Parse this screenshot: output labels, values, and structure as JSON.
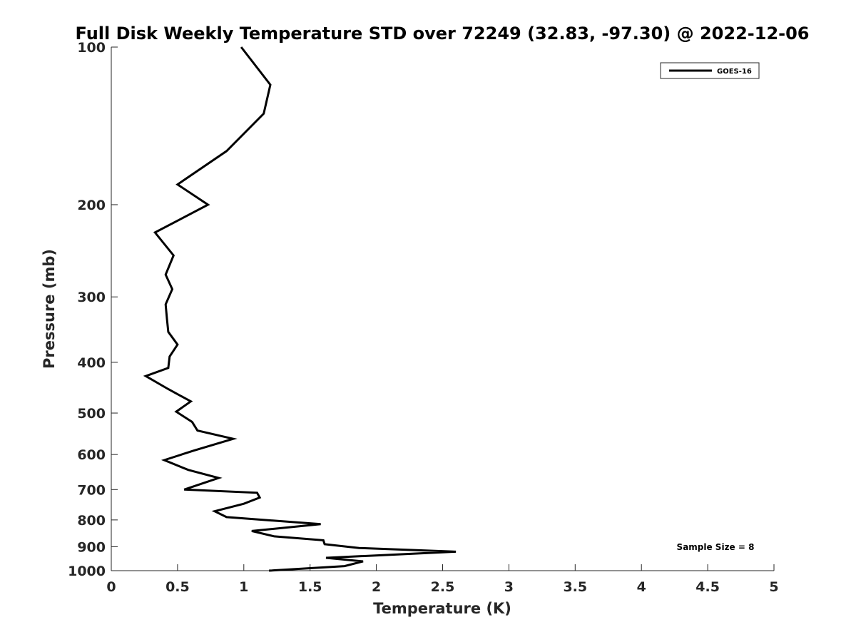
{
  "chart_data": {
    "type": "line",
    "title": "Full Disk Weekly Temperature STD over 72249 (32.83, -97.30) @ 2022-12-06",
    "xlabel": "Temperature (K)",
    "ylabel": "Pressure (mb)",
    "xlim": [
      0,
      5
    ],
    "ylim": [
      100,
      1000
    ],
    "y_scale": "log",
    "y_reversed": true,
    "x_ticks": [
      0,
      0.5,
      1,
      1.5,
      2,
      2.5,
      3,
      3.5,
      4,
      4.5,
      5
    ],
    "x_tick_labels": [
      "0",
      "0.5",
      "1",
      "1.5",
      "2",
      "2.5",
      "3",
      "3.5",
      "4",
      "4.5",
      "5"
    ],
    "y_ticks": [
      100,
      200,
      300,
      400,
      500,
      600,
      700,
      800,
      900,
      1000
    ],
    "y_tick_labels": [
      "100",
      "200",
      "300",
      "400",
      "500",
      "600",
      "700",
      "800",
      "900",
      "1000"
    ],
    "grid": false,
    "legend_position": "top-right",
    "annotation": "Sample Size = 8",
    "series": [
      {
        "name": "GOES-16",
        "color": "#000000",
        "x": [
          0.98,
          1.2,
          1.15,
          0.87,
          0.5,
          0.73,
          0.33,
          0.47,
          0.41,
          0.46,
          0.41,
          0.42,
          0.43,
          0.5,
          0.44,
          0.43,
          0.26,
          0.43,
          0.6,
          0.49,
          0.61,
          0.65,
          0.92,
          0.62,
          0.4,
          0.58,
          0.81,
          0.55,
          1.1,
          1.12,
          1.0,
          0.78,
          0.87,
          1.58,
          1.06,
          1.23,
          1.6,
          1.61,
          1.87,
          2.6,
          1.62,
          1.9,
          1.76,
          1.19
        ],
        "y": [
          100,
          118,
          134,
          158,
          183,
          200,
          226,
          250,
          272,
          290,
          310,
          330,
          350,
          370,
          390,
          410,
          425,
          450,
          475,
          497,
          520,
          540,
          560,
          590,
          615,
          642,
          665,
          700,
          710,
          725,
          745,
          770,
          790,
          815,
          840,
          860,
          875,
          890,
          905,
          920,
          945,
          960,
          980,
          1000
        ]
      }
    ]
  }
}
